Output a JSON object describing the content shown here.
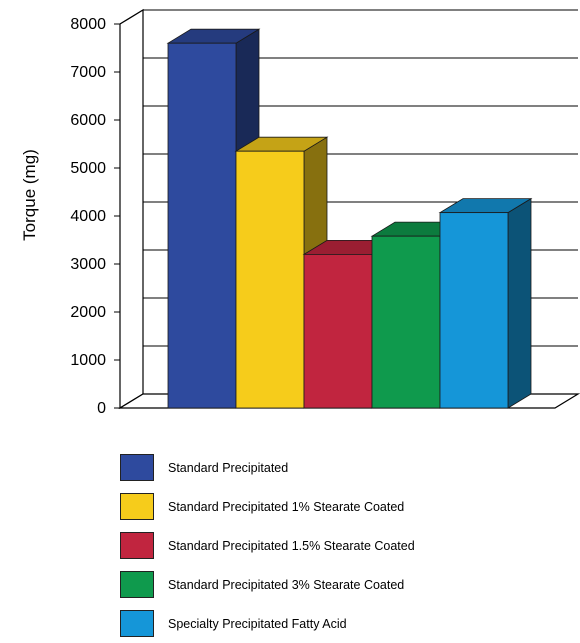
{
  "chart_data": {
    "type": "bar",
    "ylabel": "Torque (mg)",
    "ylim": [
      0,
      8000
    ],
    "yticks": [
      0,
      1000,
      2000,
      3000,
      4000,
      5000,
      6000,
      7000,
      8000
    ],
    "grid": true,
    "legend_position": "bottom",
    "series": [
      {
        "name": "Standard Precipitated",
        "value": 7600,
        "color": "#2e4a9e"
      },
      {
        "name": "Standard Precipitated 1% Stearate Coated",
        "value": 5350,
        "color": "#f6cc1b"
      },
      {
        "name": "Standard Precipitated 1.5% Stearate Coated",
        "value": 3200,
        "color": "#c1253f"
      },
      {
        "name": "Standard Precipitated 3% Stearate Coated",
        "value": 3580,
        "color": "#0f9a4d"
      },
      {
        "name": "Specialty Precipitated Fatty Acid",
        "value": 4070,
        "color": "#1596d8"
      }
    ]
  }
}
